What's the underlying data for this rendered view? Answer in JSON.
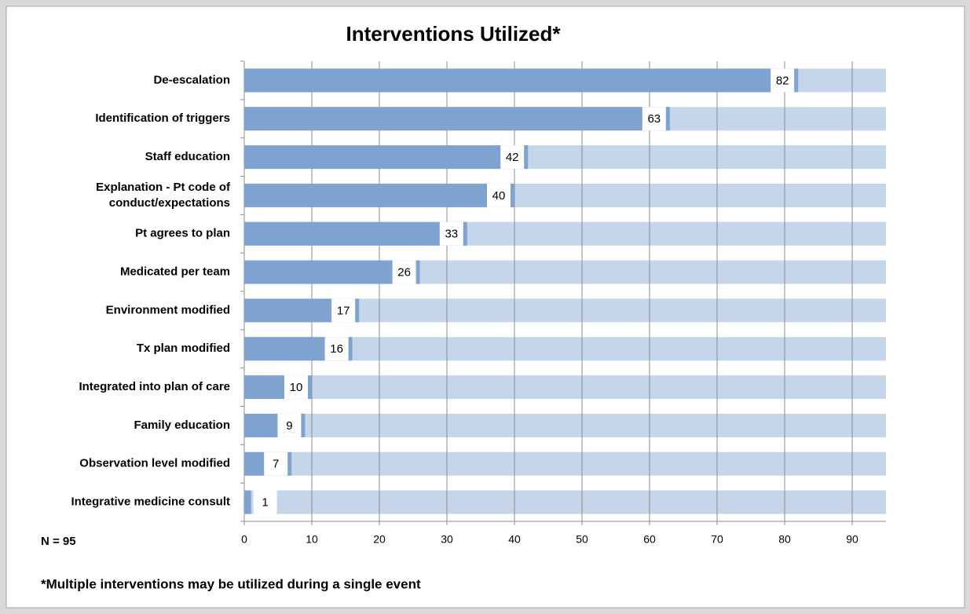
{
  "chart_data": {
    "type": "bar",
    "orientation": "horizontal",
    "title": "Interventions Utilized*",
    "categories": [
      "De-escalation",
      "Identification of triggers",
      "Staff education",
      "Explanation - Pt code of conduct/expectations",
      "Pt agrees to plan",
      "Medicated per team",
      "Environment modified",
      "Tx plan modified",
      "Integrated into plan of care",
      "Family education",
      "Observation level modified",
      "Integrative medicine consult"
    ],
    "values": [
      82,
      63,
      42,
      40,
      33,
      26,
      17,
      16,
      10,
      9,
      7,
      1
    ],
    "color": "#7fa3d0",
    "track_color": "#c5d6ea",
    "xlim": [
      0,
      95
    ],
    "xticks": [
      0,
      10,
      20,
      30,
      40,
      50,
      60,
      70,
      80,
      90
    ],
    "grid": true,
    "annotations": [
      "N = 95",
      "*Multiple interventions may be utilized during a single event"
    ]
  }
}
